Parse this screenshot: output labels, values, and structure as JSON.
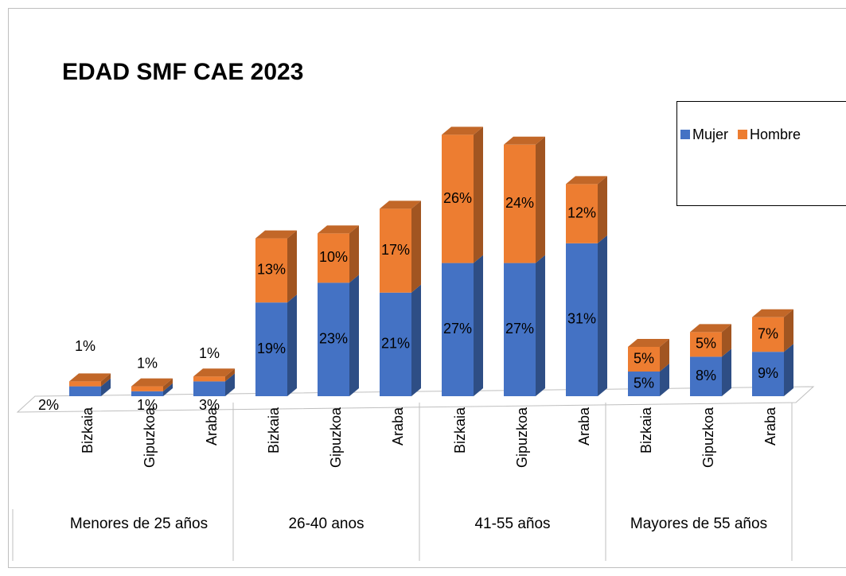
{
  "chart_data": {
    "type": "bar3d_stacked",
    "title": "EDAD  SMF CAE 2023",
    "categories": [
      "Bizkaia",
      "Gipuzkoa",
      "Araba",
      "Bizkaia",
      "Gipuzkoa",
      "Araba",
      "Bizkaia",
      "Gipuzkoa",
      "Araba",
      "Bizkaia",
      "Gipuzkoa",
      "Araba"
    ],
    "groups": [
      "Menores de 25 años",
      "26-40 anos",
      "41-55 años",
      "Mayores de 55 años"
    ],
    "series": [
      {
        "name": "Mujer",
        "color": "#4472c4",
        "values": [
          2,
          1,
          3,
          19,
          23,
          21,
          27,
          27,
          31,
          5,
          8,
          9
        ],
        "value_labels": [
          "2%",
          "1%",
          "3%",
          "19%",
          "23%",
          "21%",
          "27%",
          "27%",
          "31%",
          "5%",
          "8%",
          "9%"
        ]
      },
      {
        "name": "Hombre",
        "color": "#ed7d31",
        "values": [
          1,
          1,
          1,
          13,
          10,
          17,
          26,
          24,
          12,
          5,
          5,
          7
        ],
        "value_labels": [
          "1%",
          "1%",
          "1%",
          "13%",
          "10%",
          "17%",
          "26%",
          "24%",
          "12%",
          "5%",
          "5%",
          "7%"
        ]
      }
    ],
    "legend": "top-right"
  }
}
